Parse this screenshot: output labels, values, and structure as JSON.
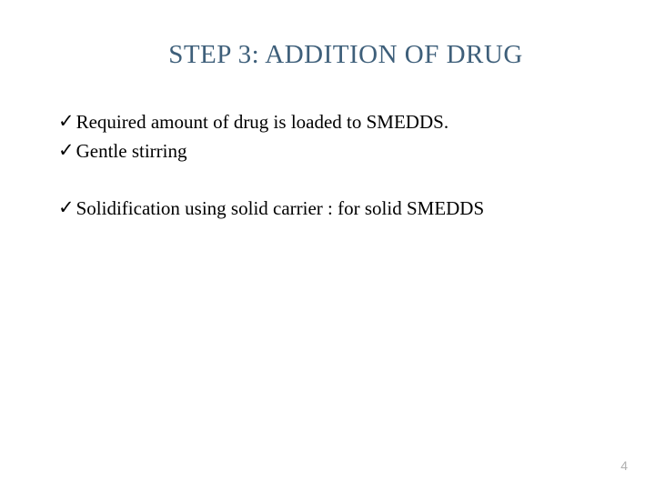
{
  "slide": {
    "title": "STEP 3: ADDITION OF DRUG",
    "title_color": "#3e5f7a",
    "bullets_group1": [
      "Required amount of drug is loaded to SMEDDS.",
      "Gentle stirring"
    ],
    "bullets_group2": [
      "Solidification using solid carrier : for solid SMEDDS"
    ],
    "check_mark": "✓",
    "page_number": "4",
    "body_text_color": "#000000",
    "background_color": "#ffffff",
    "title_fontsize": 29,
    "body_fontsize": 21,
    "page_num_color": "#b0b0b0"
  }
}
